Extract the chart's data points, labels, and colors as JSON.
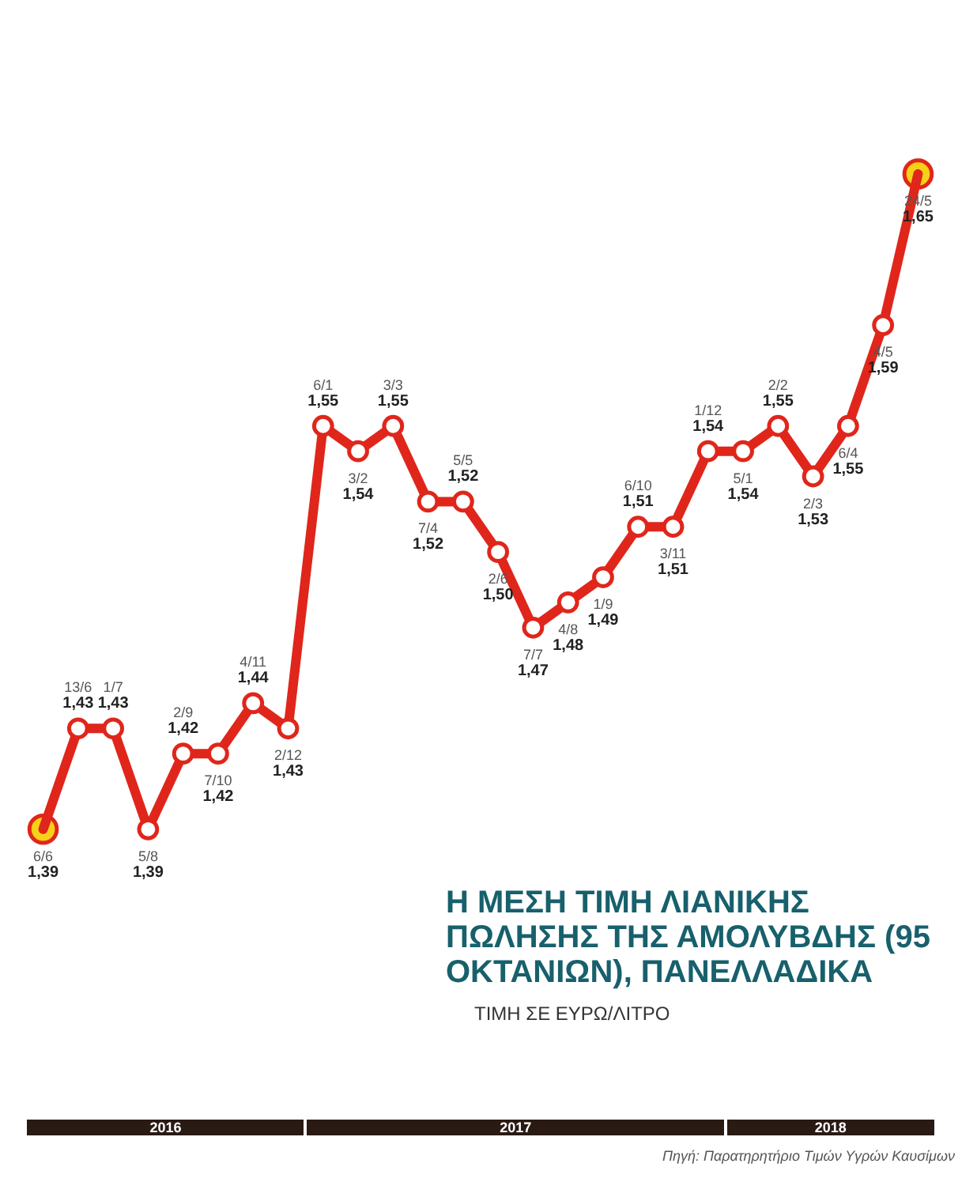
{
  "chart_data": {
    "type": "line",
    "title": "Η ΜΕΣΗ ΤΙΜΗ ΛΙΑΝΙΚΗΣ ΠΩΛΗΣΗΣ ΤΗΣ ΑΜΟΛΥΒΔΗΣ (95 ΟΚΤΑΝΙΩΝ), ΠΑΝΕΛΛΑΔΙΚΑ",
    "subtitle": "ΤΙΜΗ ΣΕ ΕΥΡΩ/ΛΙΤΡΟ",
    "categories": [
      "6/6",
      "13/6",
      "1/7",
      "5/8",
      "2/9",
      "7/10",
      "4/11",
      "2/12",
      "6/1",
      "3/2",
      "3/3",
      "7/4",
      "5/5",
      "2/6",
      "7/7",
      "4/8",
      "1/9",
      "6/10",
      "3/11",
      "1/12",
      "5/1",
      "2/2",
      "2/3",
      "6/4",
      "4/5",
      "24/5"
    ],
    "series": [
      {
        "color": "#e0261b",
        "values": [
          1.39,
          1.43,
          1.43,
          1.39,
          1.42,
          1.42,
          1.44,
          1.43,
          1.55,
          1.54,
          1.55,
          1.52,
          1.52,
          1.5,
          1.47,
          1.48,
          1.49,
          1.51,
          1.51,
          1.54,
          1.54,
          1.55,
          1.53,
          1.55,
          1.59,
          1.65
        ],
        "value_labels": [
          "1,39",
          "1,43",
          "1,43",
          "1,39",
          "1,42",
          "1,42",
          "1,44",
          "1,43",
          "1,55",
          "1,54",
          "1,55",
          "1,52",
          "1,52",
          "1,50",
          "1,47",
          "1,48",
          "1,49",
          "1,51",
          "1,51",
          "1,54",
          "1,54",
          "1,55",
          "1,53",
          "1,55",
          "1,59",
          "1,65"
        ]
      },
      {
        "type": "scatter",
        "color": "#f7d117",
        "x": [
          "6/6",
          "24/5"
        ],
        "values": [
          1.39,
          1.65
        ]
      }
    ],
    "marker": "circle",
    "annotations": [
      "2016",
      "2017",
      "2018",
      "Πηγή: Παρατηρητήριο Τιμών Υγρών Καυσίμων"
    ]
  }
}
